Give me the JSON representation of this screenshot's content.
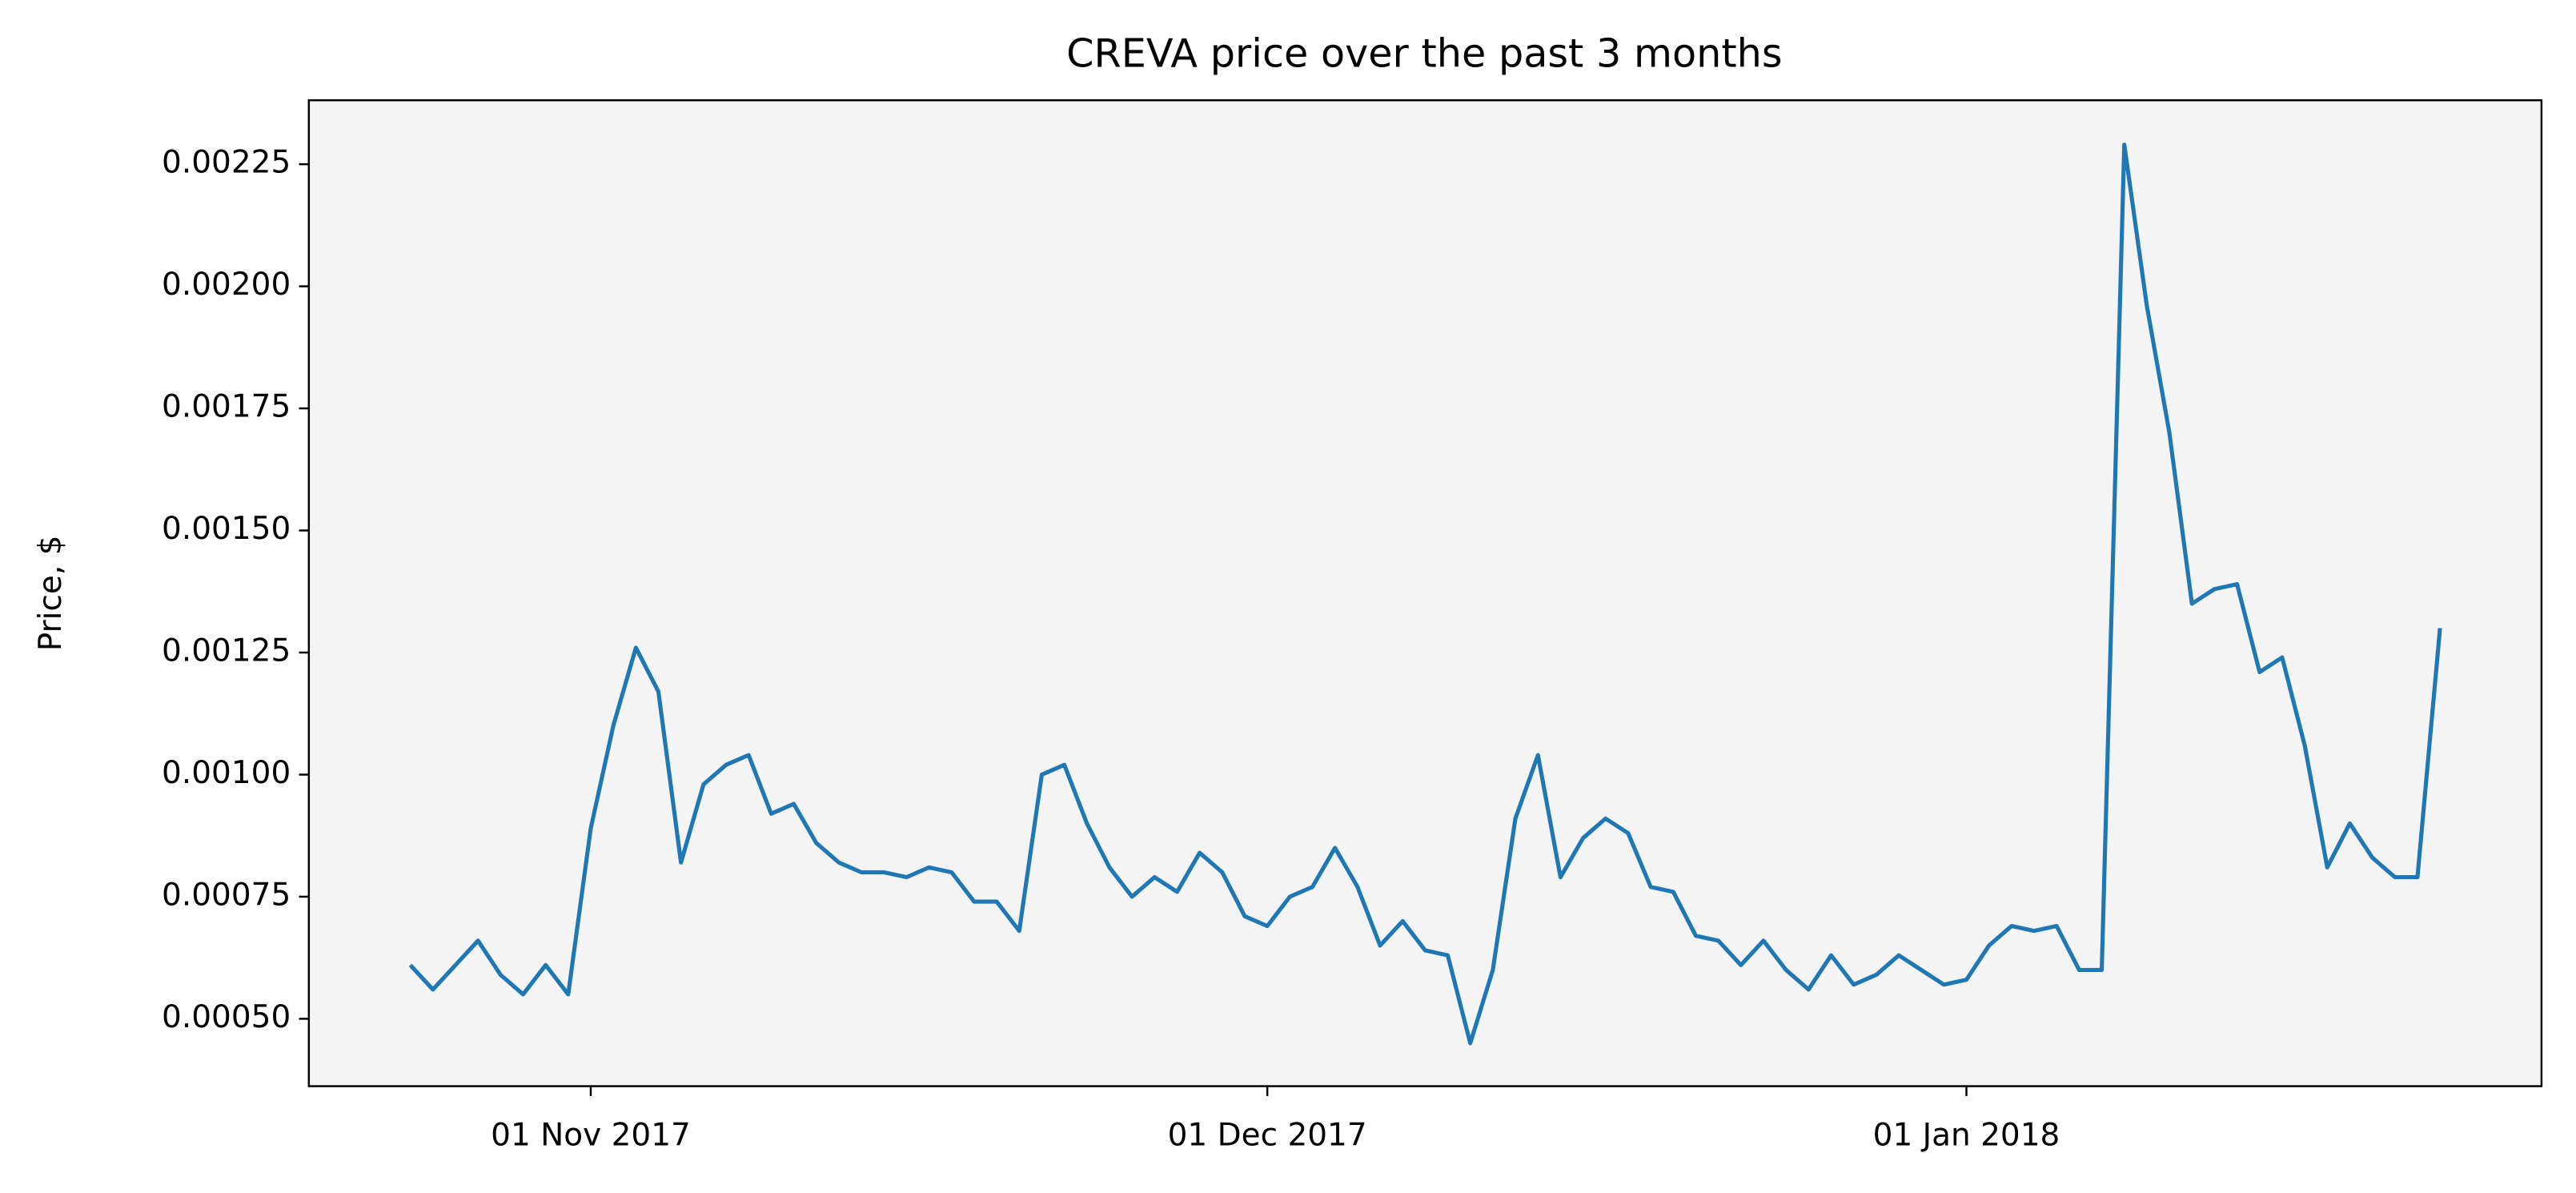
{
  "chart_data": {
    "type": "line",
    "title": "CREVA price over the past 3 months",
    "ylabel": "Price, $",
    "x": [
      "2017-10-24",
      "2017-10-25",
      "2017-10-26",
      "2017-10-27",
      "2017-10-28",
      "2017-10-29",
      "2017-10-30",
      "2017-10-31",
      "2017-11-01",
      "2017-11-02",
      "2017-11-03",
      "2017-11-04",
      "2017-11-05",
      "2017-11-06",
      "2017-11-07",
      "2017-11-08",
      "2017-11-09",
      "2017-11-10",
      "2017-11-11",
      "2017-11-12",
      "2017-11-13",
      "2017-11-14",
      "2017-11-15",
      "2017-11-16",
      "2017-11-17",
      "2017-11-18",
      "2017-11-19",
      "2017-11-20",
      "2017-11-21",
      "2017-11-22",
      "2017-11-23",
      "2017-11-24",
      "2017-11-25",
      "2017-11-26",
      "2017-11-27",
      "2017-11-28",
      "2017-11-29",
      "2017-11-30",
      "2017-12-01",
      "2017-12-02",
      "2017-12-03",
      "2017-12-04",
      "2017-12-05",
      "2017-12-06",
      "2017-12-07",
      "2017-12-08",
      "2017-12-09",
      "2017-12-10",
      "2017-12-11",
      "2017-12-12",
      "2017-12-13",
      "2017-12-14",
      "2017-12-15",
      "2017-12-16",
      "2017-12-17",
      "2017-12-18",
      "2017-12-19",
      "2017-12-20",
      "2017-12-21",
      "2017-12-22",
      "2017-12-23",
      "2017-12-24",
      "2017-12-25",
      "2017-12-26",
      "2017-12-27",
      "2017-12-28",
      "2017-12-29",
      "2017-12-30",
      "2017-12-31",
      "2018-01-01",
      "2018-01-02",
      "2018-01-03",
      "2018-01-04",
      "2018-01-05",
      "2018-01-06",
      "2018-01-07",
      "2018-01-08",
      "2018-01-09",
      "2018-01-10",
      "2018-01-11",
      "2018-01-12",
      "2018-01-13",
      "2018-01-14",
      "2018-01-15",
      "2018-01-16",
      "2018-01-17",
      "2018-01-18",
      "2018-01-19",
      "2018-01-20",
      "2018-01-21",
      "2018-01-22"
    ],
    "series": [
      {
        "color": "#1f77b4",
        "values": [
          0.00061,
          0.00056,
          0.00061,
          0.00066,
          0.00059,
          0.00055,
          0.00061,
          0.00055,
          0.00089,
          0.0011,
          0.00126,
          0.00117,
          0.00082,
          0.00098,
          0.00102,
          0.00104,
          0.00092,
          0.00094,
          0.00086,
          0.00082,
          0.0008,
          0.0008,
          0.00079,
          0.00081,
          0.0008,
          0.00074,
          0.00074,
          0.00068,
          0.001,
          0.00102,
          0.0009,
          0.00081,
          0.00075,
          0.00079,
          0.00076,
          0.00084,
          0.0008,
          0.00071,
          0.00069,
          0.00075,
          0.00077,
          0.00085,
          0.00077,
          0.00065,
          0.0007,
          0.00064,
          0.00063,
          0.00045,
          0.0006,
          0.00091,
          0.00104,
          0.00079,
          0.00087,
          0.00091,
          0.00088,
          0.00077,
          0.00076,
          0.00067,
          0.00066,
          0.00061,
          0.00066,
          0.0006,
          0.00056,
          0.00063,
          0.00057,
          0.00059,
          0.00063,
          0.0006,
          0.00057,
          0.00058,
          0.00065,
          0.00069,
          0.00068,
          0.00069,
          0.0006,
          0.0006,
          0.00229,
          0.00196,
          0.0017,
          0.00135,
          0.00138,
          0.00139,
          0.00121,
          0.00124,
          0.00106,
          0.00081,
          0.0009,
          0.00083,
          0.00079,
          0.00079,
          0.0013
        ]
      }
    ],
    "xlim": [
      "2017-10-19T12:00:00Z",
      "2018-01-26T12:00:00Z"
    ],
    "xticks": [
      {
        "value": "2017-11-01",
        "label": "01 Nov 2017"
      },
      {
        "value": "2017-12-01",
        "label": "01 Dec 2017"
      },
      {
        "value": "2018-01-01",
        "label": "01 Jan 2018"
      }
    ],
    "ylim": [
      0.000362,
      0.002381
    ],
    "yticks": [
      {
        "value": 0.0005,
        "label": "0.00050"
      },
      {
        "value": 0.00075,
        "label": "0.00075"
      },
      {
        "value": 0.001,
        "label": "0.00100"
      },
      {
        "value": 0.00125,
        "label": "0.00125"
      },
      {
        "value": 0.0015,
        "label": "0.00150"
      },
      {
        "value": 0.00175,
        "label": "0.00175"
      },
      {
        "value": 0.002,
        "label": "0.00200"
      },
      {
        "value": 0.00225,
        "label": "0.00225"
      }
    ],
    "plot_background": "#f4f4f4"
  }
}
